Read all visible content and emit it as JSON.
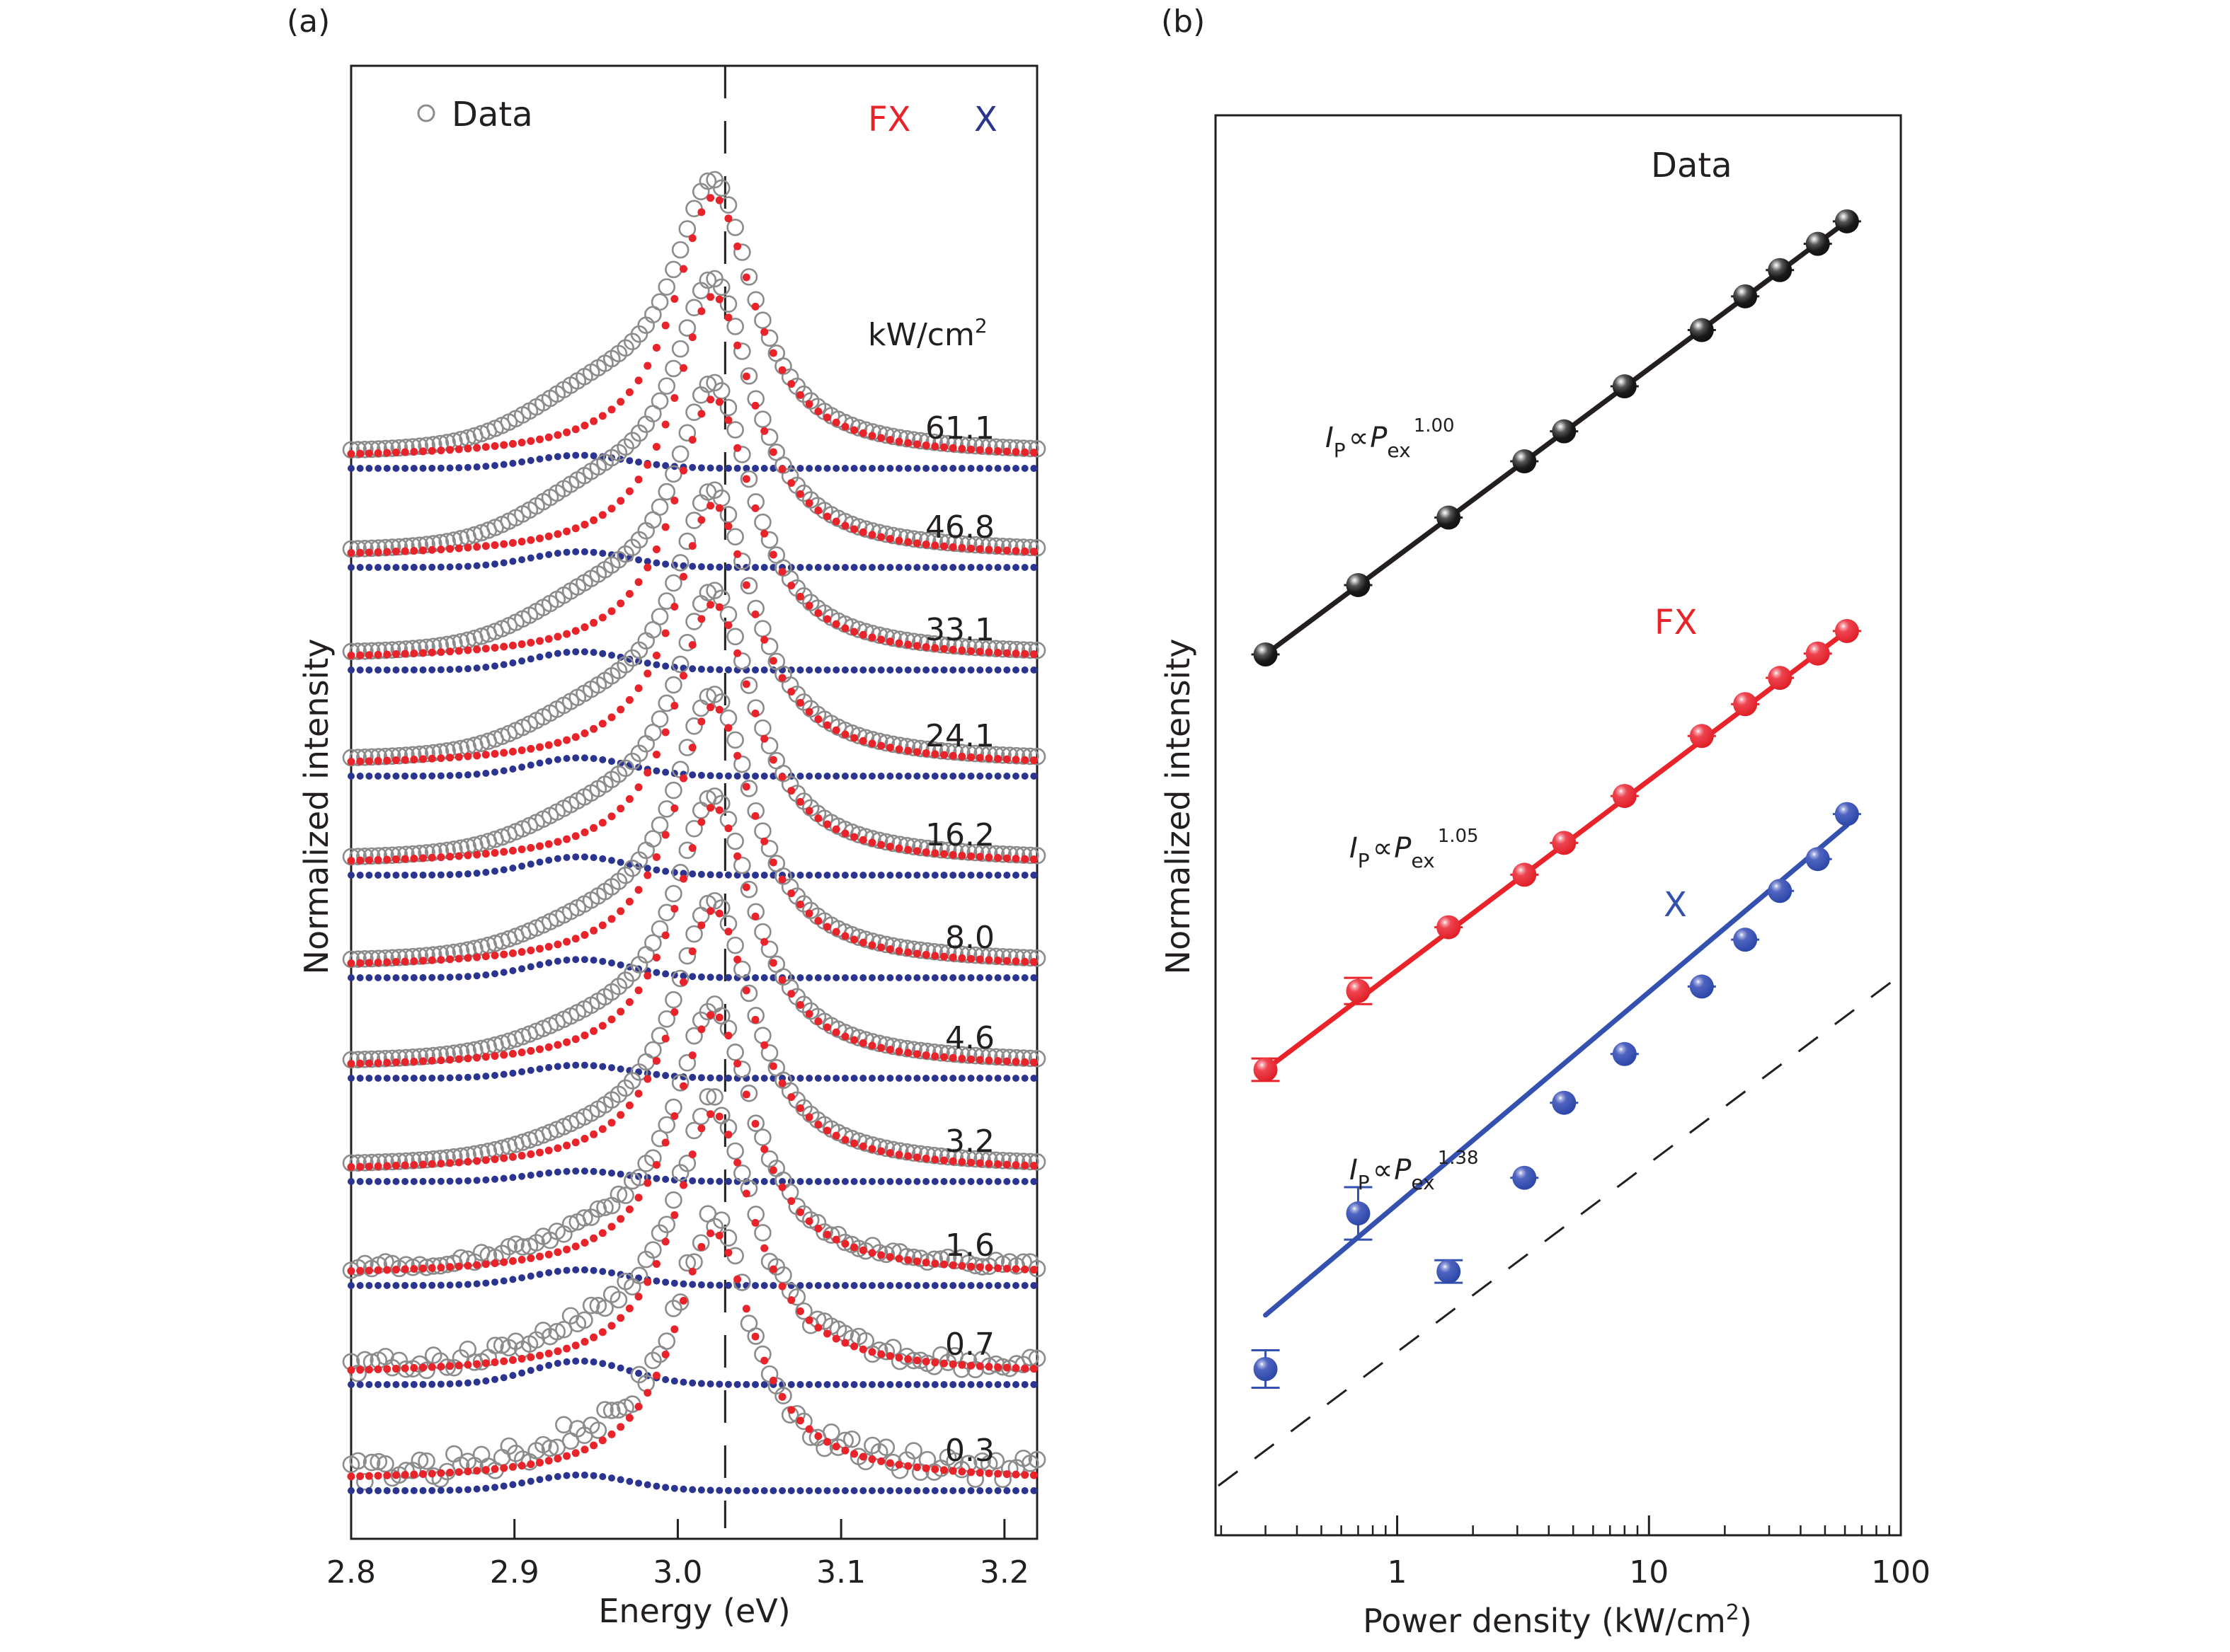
{
  "figure": {
    "panels": [
      "(a)",
      "(b)"
    ]
  },
  "colors": {
    "data": "#8c8c8c",
    "fx": "#e8232a",
    "x": "#2b3590",
    "x_panel_b": "#3551b0",
    "black": "#231f20"
  },
  "chart_data": [
    {
      "type": "line",
      "panel": "(a)",
      "title": "",
      "xlabel": "Energy (eV)",
      "ylabel": "Normalized intensity",
      "xlim": [
        2.8,
        3.22
      ],
      "xticks": [
        "2.8",
        "2.9",
        "3.0",
        "3.1",
        "3.2"
      ],
      "xtick_values": [
        2.8,
        2.9,
        3.0,
        3.1,
        3.2
      ],
      "legend": {
        "data_label": "Data",
        "fx_label": "FX",
        "x_label": "X",
        "placement": "top"
      },
      "reference_line_eV": 3.029,
      "power_unit_label": "kW/cm",
      "power_unit_sup": "2",
      "fx_peak_eV": 3.022,
      "fx_fwhm_eV": 0.06,
      "x_peak_eV": 2.94,
      "x_fwhm_eV": 0.07,
      "stacked_offset": "vertical, highest power at top",
      "spectra": [
        {
          "power": "61.1",
          "fx_amp": 1.0,
          "x_amp": 0.05,
          "data_shoulder": 0.1
        },
        {
          "power": "46.8",
          "fx_amp": 1.0,
          "x_amp": 0.06,
          "data_shoulder": 0.1
        },
        {
          "power": "33.1",
          "fx_amp": 1.0,
          "x_amp": 0.07,
          "data_shoulder": 0.09
        },
        {
          "power": "24.1",
          "fx_amp": 1.0,
          "x_amp": 0.07,
          "data_shoulder": 0.08
        },
        {
          "power": "16.2",
          "fx_amp": 1.0,
          "x_amp": 0.07,
          "data_shoulder": 0.07
        },
        {
          "power": "8.0",
          "fx_amp": 1.0,
          "x_amp": 0.07,
          "data_shoulder": 0.06
        },
        {
          "power": "4.6",
          "fx_amp": 1.0,
          "x_amp": 0.05,
          "data_shoulder": 0.05
        },
        {
          "power": "3.2",
          "fx_amp": 1.0,
          "x_amp": 0.04,
          "data_shoulder": 0.04
        },
        {
          "power": "1.6",
          "fx_amp": 1.0,
          "x_amp": 0.06,
          "data_shoulder": 0.04
        },
        {
          "power": "0.7",
          "fx_amp": 1.0,
          "x_amp": 0.09,
          "data_shoulder": 0.05
        },
        {
          "power": "0.3",
          "fx_amp": 0.95,
          "x_amp": 0.06,
          "data_shoulder": 0.04
        }
      ]
    },
    {
      "type": "scatter",
      "panel": "(b)",
      "title": "",
      "xlabel": "Power density (kW/cm",
      "xlabel_sup": "2",
      "xlabel_end": ")",
      "ylabel": "Normalized intensity",
      "xscale": "log",
      "xlim": [
        0.19,
        100
      ],
      "xticks": [
        "1",
        "10",
        "100"
      ],
      "xtick_values": [
        1,
        10,
        100
      ],
      "yscale": "log (arbitrary, no tick labels)",
      "x": [
        0.3,
        0.7,
        1.6,
        3.2,
        4.6,
        8.0,
        16.2,
        24.1,
        33.1,
        46.8,
        61.1
      ],
      "series": [
        {
          "name": "Data",
          "color": "#231f20",
          "exponent": "1.00",
          "fit_label_I": "I",
          "fit_label_sub": "P",
          "fit_label_prop": "∝",
          "fit_label_P": "P",
          "fit_label_P_sub": "ex",
          "log_values": [
            0.0,
            0.37,
            0.73,
            1.03,
            1.19,
            1.43,
            1.73,
            1.91,
            2.05,
            2.19,
            2.31
          ],
          "err": [
            0.02,
            0.02,
            0.02,
            0.02,
            0.02,
            0.02,
            0.02,
            0.02,
            0.02,
            0.02,
            0.02
          ]
        },
        {
          "name": "FX",
          "color": "#e8232a",
          "exponent": "1.05",
          "fit_label_I": "I",
          "fit_label_sub": "P",
          "fit_label_prop": "∝",
          "fit_label_P": "P",
          "fit_label_P_sub": "ex",
          "log_values": [
            0.0,
            0.42,
            0.76,
            1.04,
            1.21,
            1.46,
            1.78,
            1.95,
            2.09,
            2.22,
            2.34
          ],
          "err": [
            0.06,
            0.07,
            0.02,
            0.02,
            0.02,
            0.02,
            0.02,
            0.02,
            0.02,
            0.02,
            0.02
          ]
        },
        {
          "name": "X",
          "color": "#3551b0",
          "exponent": "1.38",
          "fit_label_I": "I",
          "fit_label_sub": "P",
          "fit_label_prop": "∝",
          "fit_label_P": "P",
          "fit_label_P_sub": "ex",
          "log_values": [
            0.0,
            0.83,
            0.52,
            1.02,
            1.42,
            1.68,
            2.04,
            2.29,
            2.55,
            2.72,
            2.96
          ],
          "err": [
            0.1,
            0.14,
            0.06,
            0.03,
            0.03,
            0.03,
            0.03,
            0.03,
            0.03,
            0.03,
            0.03
          ]
        }
      ],
      "reference_dashed_line": "slope 1 guide, black dashed"
    }
  ]
}
